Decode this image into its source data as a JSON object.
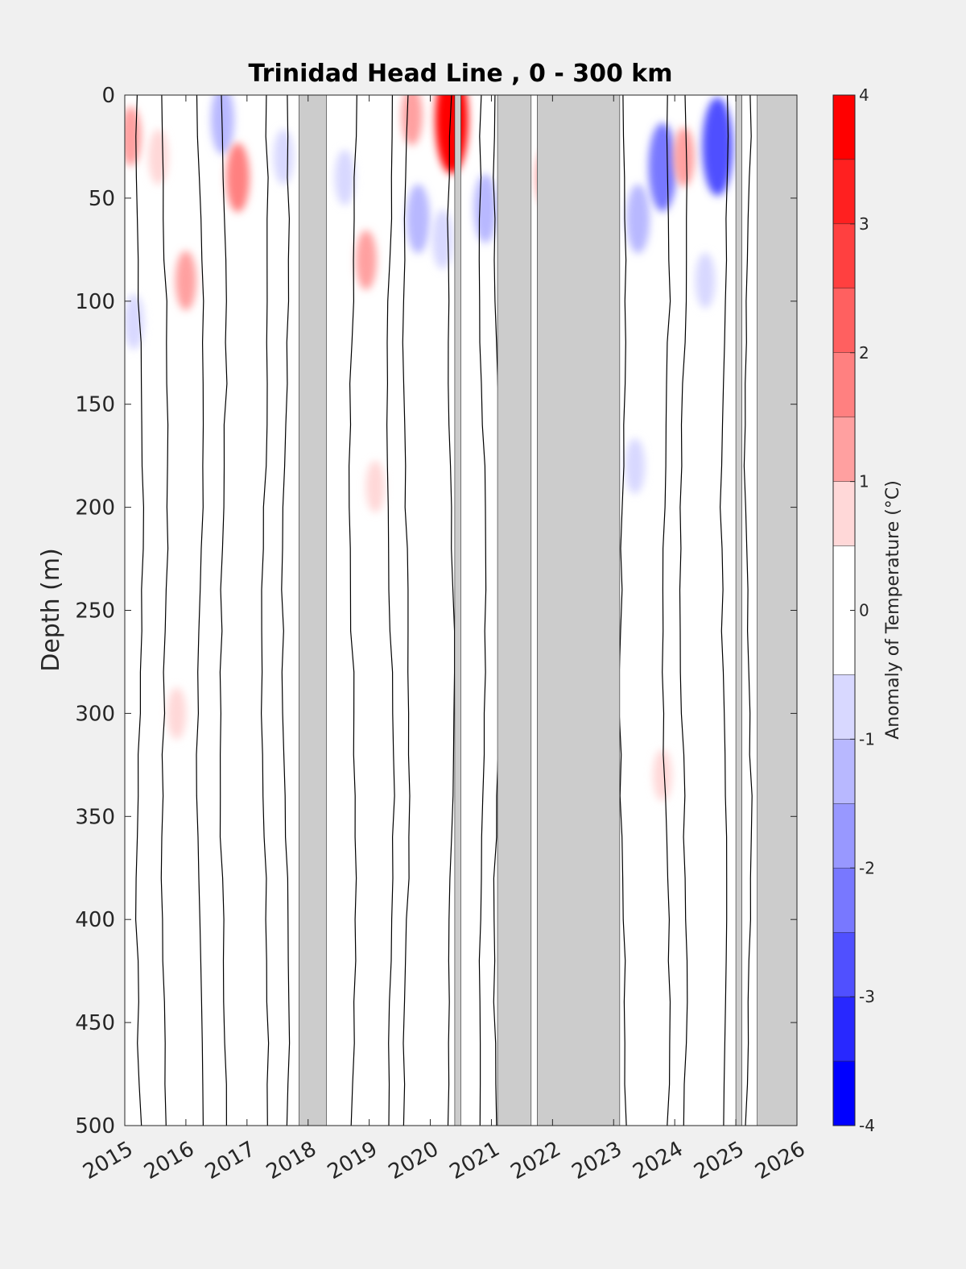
{
  "chart_data": {
    "type": "heatmap",
    "title": "Trinidad Head Line , 0 - 300 km",
    "ylabel": "Depth (m)",
    "xlabel": "",
    "x_ticks": [
      "2015",
      "2016",
      "2017",
      "2018",
      "2019",
      "2020",
      "2021",
      "2022",
      "2023",
      "2024",
      "2025",
      "2026"
    ],
    "x_range": [
      2015,
      2026
    ],
    "y_ticks": [
      0,
      50,
      100,
      150,
      200,
      250,
      300,
      350,
      400,
      450,
      500
    ],
    "y_range": [
      0,
      500
    ],
    "y_reversed": true,
    "colorbar": {
      "label": "Anomaly of Temperature (°C)",
      "ticks": [
        4,
        3,
        2,
        1,
        0,
        -1,
        -2,
        -3,
        -4
      ],
      "range": [
        -4,
        4
      ],
      "levels": [
        {
          "from": 3.5,
          "to": 4.0,
          "color": "#ff0000"
        },
        {
          "from": 3.0,
          "to": 3.5,
          "color": "#ff2020"
        },
        {
          "from": 2.5,
          "to": 3.0,
          "color": "#ff4040"
        },
        {
          "from": 2.0,
          "to": 2.5,
          "color": "#ff6060"
        },
        {
          "from": 1.5,
          "to": 2.0,
          "color": "#ff8080"
        },
        {
          "from": 1.0,
          "to": 1.5,
          "color": "#ffa0a0"
        },
        {
          "from": 0.5,
          "to": 1.0,
          "color": "#ffd8d8"
        },
        {
          "from": -0.5,
          "to": 0.5,
          "color": "#ffffff"
        },
        {
          "from": -1.0,
          "to": -0.5,
          "color": "#d8d8ff"
        },
        {
          "from": -1.5,
          "to": -1.0,
          "color": "#b8b8ff"
        },
        {
          "from": -2.0,
          "to": -1.5,
          "color": "#9898ff"
        },
        {
          "from": -2.5,
          "to": -2.0,
          "color": "#7878ff"
        },
        {
          "from": -3.0,
          "to": -2.5,
          "color": "#5050ff"
        },
        {
          "from": -3.5,
          "to": -3.0,
          "color": "#2828ff"
        },
        {
          "from": -4.0,
          "to": -3.5,
          "color": "#0000ff"
        }
      ]
    },
    "no_data_color": "#cccccc",
    "no_data_periods": [
      [
        2017.85,
        2018.3
      ],
      [
        2020.4,
        2020.5
      ],
      [
        2021.1,
        2021.65
      ],
      [
        2021.75,
        2023.1
      ],
      [
        2025.0,
        2025.1
      ],
      [
        2025.35,
        2026.0
      ]
    ],
    "anomaly_patches": [
      {
        "x": 2015.1,
        "y": 20,
        "value": 1.0
      },
      {
        "x": 2015.15,
        "y": 110,
        "value": -0.8
      },
      {
        "x": 2015.55,
        "y": 30,
        "value": 0.8
      },
      {
        "x": 2016.0,
        "y": 90,
        "value": 1.0
      },
      {
        "x": 2015.85,
        "y": 300,
        "value": 0.6
      },
      {
        "x": 2016.6,
        "y": 12,
        "value": -1.5
      },
      {
        "x": 2016.85,
        "y": 40,
        "value": 1.5
      },
      {
        "x": 2017.6,
        "y": 30,
        "value": -0.8
      },
      {
        "x": 2018.6,
        "y": 40,
        "value": -0.8
      },
      {
        "x": 2018.95,
        "y": 80,
        "value": 1.0
      },
      {
        "x": 2019.1,
        "y": 190,
        "value": 0.6
      },
      {
        "x": 2019.7,
        "y": 10,
        "value": 1.0
      },
      {
        "x": 2019.8,
        "y": 60,
        "value": -1.5
      },
      {
        "x": 2020.2,
        "y": 70,
        "value": -1.0
      },
      {
        "x": 2020.35,
        "y": 12,
        "value": 3.5
      },
      {
        "x": 2020.9,
        "y": 55,
        "value": -1.5
      },
      {
        "x": 2021.9,
        "y": 40,
        "value": 1.0
      },
      {
        "x": 2023.4,
        "y": 60,
        "value": -1.5
      },
      {
        "x": 2023.8,
        "y": 35,
        "value": -2.5
      },
      {
        "x": 2023.35,
        "y": 180,
        "value": -0.8
      },
      {
        "x": 2024.15,
        "y": 30,
        "value": 1.0
      },
      {
        "x": 2024.5,
        "y": 90,
        "value": -0.8
      },
      {
        "x": 2024.7,
        "y": 25,
        "value": -3.0
      },
      {
        "x": 2023.8,
        "y": 330,
        "value": 0.6
      }
    ]
  }
}
